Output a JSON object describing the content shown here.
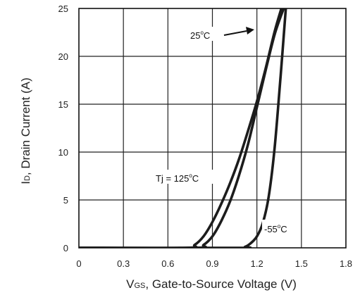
{
  "chart_data": {
    "type": "line",
    "xlabel": {
      "main": "V",
      "sub": "GS",
      "rest": ", Gate-to-Source Voltage (V)"
    },
    "ylabel": {
      "main": "I",
      "sub": "D",
      "rest": ", Drain Current (A)"
    },
    "xlim": [
      0,
      1.8
    ],
    "ylim": [
      0,
      25
    ],
    "xticks": [
      0,
      0.3,
      0.6,
      0.9,
      1.2,
      1.5,
      1.8
    ],
    "xtick_labels": [
      "0",
      "0.3",
      "0.6",
      "0.9",
      "1.2",
      "1.5",
      "1.8"
    ],
    "yticks": [
      0,
      5,
      10,
      15,
      20,
      25
    ],
    "ytick_labels": [
      "0",
      "5",
      "10",
      "15",
      "20",
      "25"
    ],
    "grid": true,
    "series": [
      {
        "name": "Tj = 125°C",
        "x": [
          0,
          0.72,
          0.78,
          0.84,
          0.9,
          0.96,
          1.02,
          1.08,
          1.14,
          1.2,
          1.26,
          1.32,
          1.365
        ],
        "y": [
          0,
          0,
          0.3,
          1.2,
          2.7,
          4.6,
          6.8,
          9.3,
          12.2,
          15.3,
          18.8,
          22.6,
          25
        ]
      },
      {
        "name": "25°C",
        "x": [
          0,
          0.78,
          0.84,
          0.9,
          0.96,
          1.02,
          1.08,
          1.14,
          1.2,
          1.26,
          1.32,
          1.38
        ],
        "y": [
          0,
          0,
          0.3,
          1.2,
          2.8,
          4.9,
          7.6,
          10.8,
          14.7,
          18.6,
          22.3,
          25
        ]
      },
      {
        "name": "-55°C",
        "x": [
          0,
          1.06,
          1.12,
          1.16,
          1.2,
          1.24,
          1.28,
          1.32,
          1.36,
          1.395
        ],
        "y": [
          0,
          0,
          0.1,
          0.5,
          1.2,
          2.6,
          5.4,
          10.5,
          18.0,
          25
        ]
      }
    ],
    "annotations": [
      {
        "label_main": "25",
        "label_sup": "o",
        "label_rest": "C",
        "has_arrow": true
      },
      {
        "label_main": "Tj = 125",
        "label_sup": "o",
        "label_rest": "C",
        "has_arrow": false
      },
      {
        "label_main": "-55",
        "label_sup": "o",
        "label_rest": "C",
        "has_arrow": false
      }
    ],
    "colors": {
      "curve": "#1c1c1c",
      "grid": "#222222",
      "frame": "#111111"
    }
  }
}
